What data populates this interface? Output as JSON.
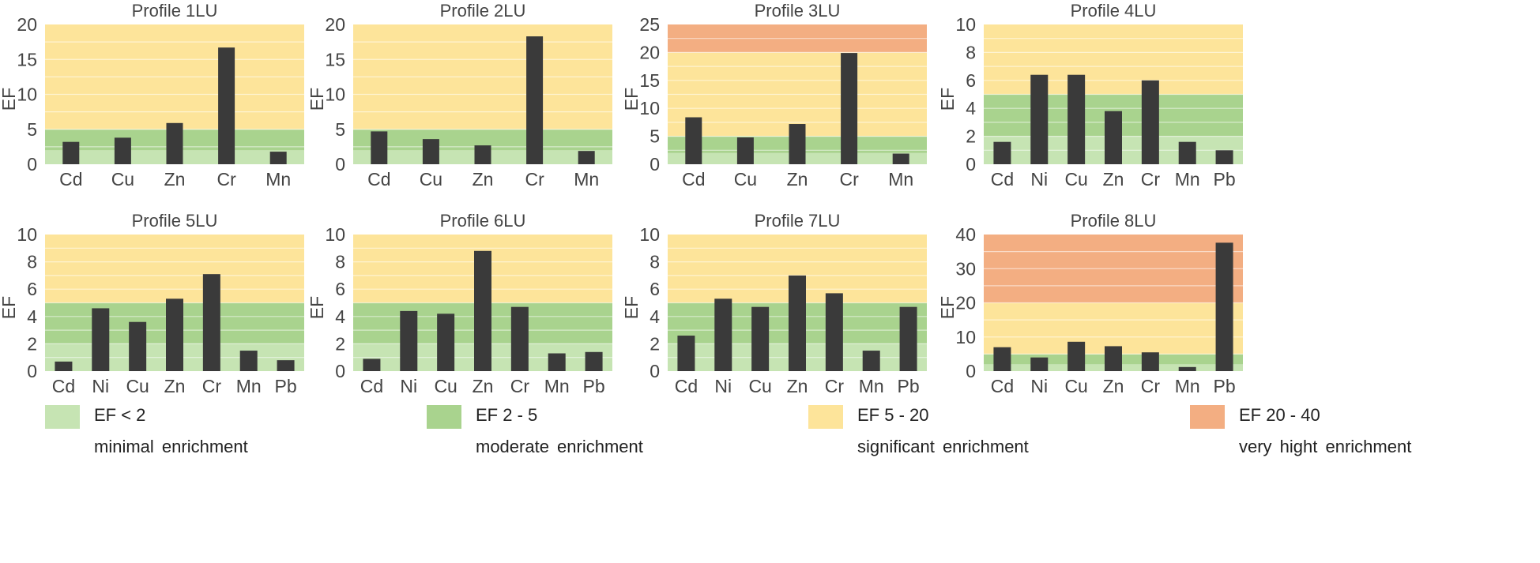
{
  "chart_data": [
    {
      "type": "bar",
      "title": "Profile 1LU",
      "ylabel": "EF",
      "ylim": [
        0,
        20
      ],
      "yticks": [
        0,
        5,
        10,
        15,
        20
      ],
      "categories": [
        "Cd",
        "Cu",
        "Zn",
        "Cr",
        "Mn"
      ],
      "values": [
        3.2,
        3.8,
        5.9,
        16.7,
        1.8
      ]
    },
    {
      "type": "bar",
      "title": "Profile 2LU",
      "ylabel": "EF",
      "ylim": [
        0,
        20
      ],
      "yticks": [
        0,
        5,
        10,
        15,
        20
      ],
      "categories": [
        "Cd",
        "Cu",
        "Zn",
        "Cr",
        "Mn"
      ],
      "values": [
        4.7,
        3.6,
        2.7,
        18.3,
        1.9
      ]
    },
    {
      "type": "bar",
      "title": "Profile 3LU",
      "ylabel": "EF",
      "ylim": [
        0,
        25
      ],
      "yticks": [
        0,
        5,
        10,
        15,
        20,
        25
      ],
      "categories": [
        "Cd",
        "Cu",
        "Zn",
        "Cr",
        "Mn"
      ],
      "values": [
        8.4,
        4.8,
        7.2,
        19.9,
        1.9
      ]
    },
    {
      "type": "bar",
      "title": "Profile 4LU",
      "ylabel": "EF",
      "ylim": [
        0,
        10
      ],
      "yticks": [
        0,
        2,
        4,
        6,
        8,
        10
      ],
      "categories": [
        "Cd",
        "Ni",
        "Cu",
        "Zn",
        "Cr",
        "Mn",
        "Pb"
      ],
      "values": [
        1.6,
        6.4,
        6.4,
        3.8,
        6.0,
        1.6,
        1.0
      ]
    },
    {
      "type": "bar",
      "title": "Profile 5LU",
      "ylabel": "EF",
      "ylim": [
        0,
        10
      ],
      "yticks": [
        0,
        2,
        4,
        6,
        8,
        10
      ],
      "categories": [
        "Cd",
        "Ni",
        "Cu",
        "Zn",
        "Cr",
        "Mn",
        "Pb"
      ],
      "values": [
        0.7,
        4.6,
        3.6,
        5.3,
        7.1,
        1.5,
        0.8
      ]
    },
    {
      "type": "bar",
      "title": "Profile 6LU",
      "ylabel": "EF",
      "ylim": [
        0,
        10
      ],
      "yticks": [
        0,
        2,
        4,
        6,
        8,
        10
      ],
      "categories": [
        "Cd",
        "Ni",
        "Cu",
        "Zn",
        "Cr",
        "Mn",
        "Pb"
      ],
      "values": [
        0.9,
        4.4,
        4.2,
        8.8,
        4.7,
        1.3,
        1.4
      ]
    },
    {
      "type": "bar",
      "title": "Profile 7LU",
      "ylabel": "EF",
      "ylim": [
        0,
        10
      ],
      "yticks": [
        0,
        2,
        4,
        6,
        8,
        10
      ],
      "categories": [
        "Cd",
        "Ni",
        "Cu",
        "Zn",
        "Cr",
        "Mn",
        "Pb"
      ],
      "values": [
        2.6,
        5.3,
        4.7,
        7.0,
        5.7,
        1.5,
        4.7
      ]
    },
    {
      "type": "bar",
      "title": "Profile 8LU",
      "ylabel": "EF",
      "ylim": [
        0,
        40
      ],
      "yticks": [
        0,
        10,
        20,
        30,
        40
      ],
      "categories": [
        "Cd",
        "Ni",
        "Cu",
        "Zn",
        "Cr",
        "Mn",
        "Pb"
      ],
      "values": [
        7.0,
        4.0,
        8.6,
        7.3,
        5.5,
        1.2,
        37.6
      ]
    }
  ],
  "bands": [
    {
      "from": 0,
      "to": 2,
      "color": "#c6e4b3",
      "range": "EF < 2",
      "desc": "minimal  enrichment"
    },
    {
      "from": 2,
      "to": 5,
      "color": "#a9d38e",
      "range": "EF 2 - 5",
      "desc": "moderate  enrichment"
    },
    {
      "from": 5,
      "to": 20,
      "color": "#fde49a",
      "range": "EF 5 - 20",
      "desc": "significant  enrichment"
    },
    {
      "from": 20,
      "to": 40,
      "color": "#f3ae82",
      "range": "EF 20  - 40",
      "desc": "very hight  enrichment"
    }
  ],
  "bar_color": "#3a3a3a"
}
